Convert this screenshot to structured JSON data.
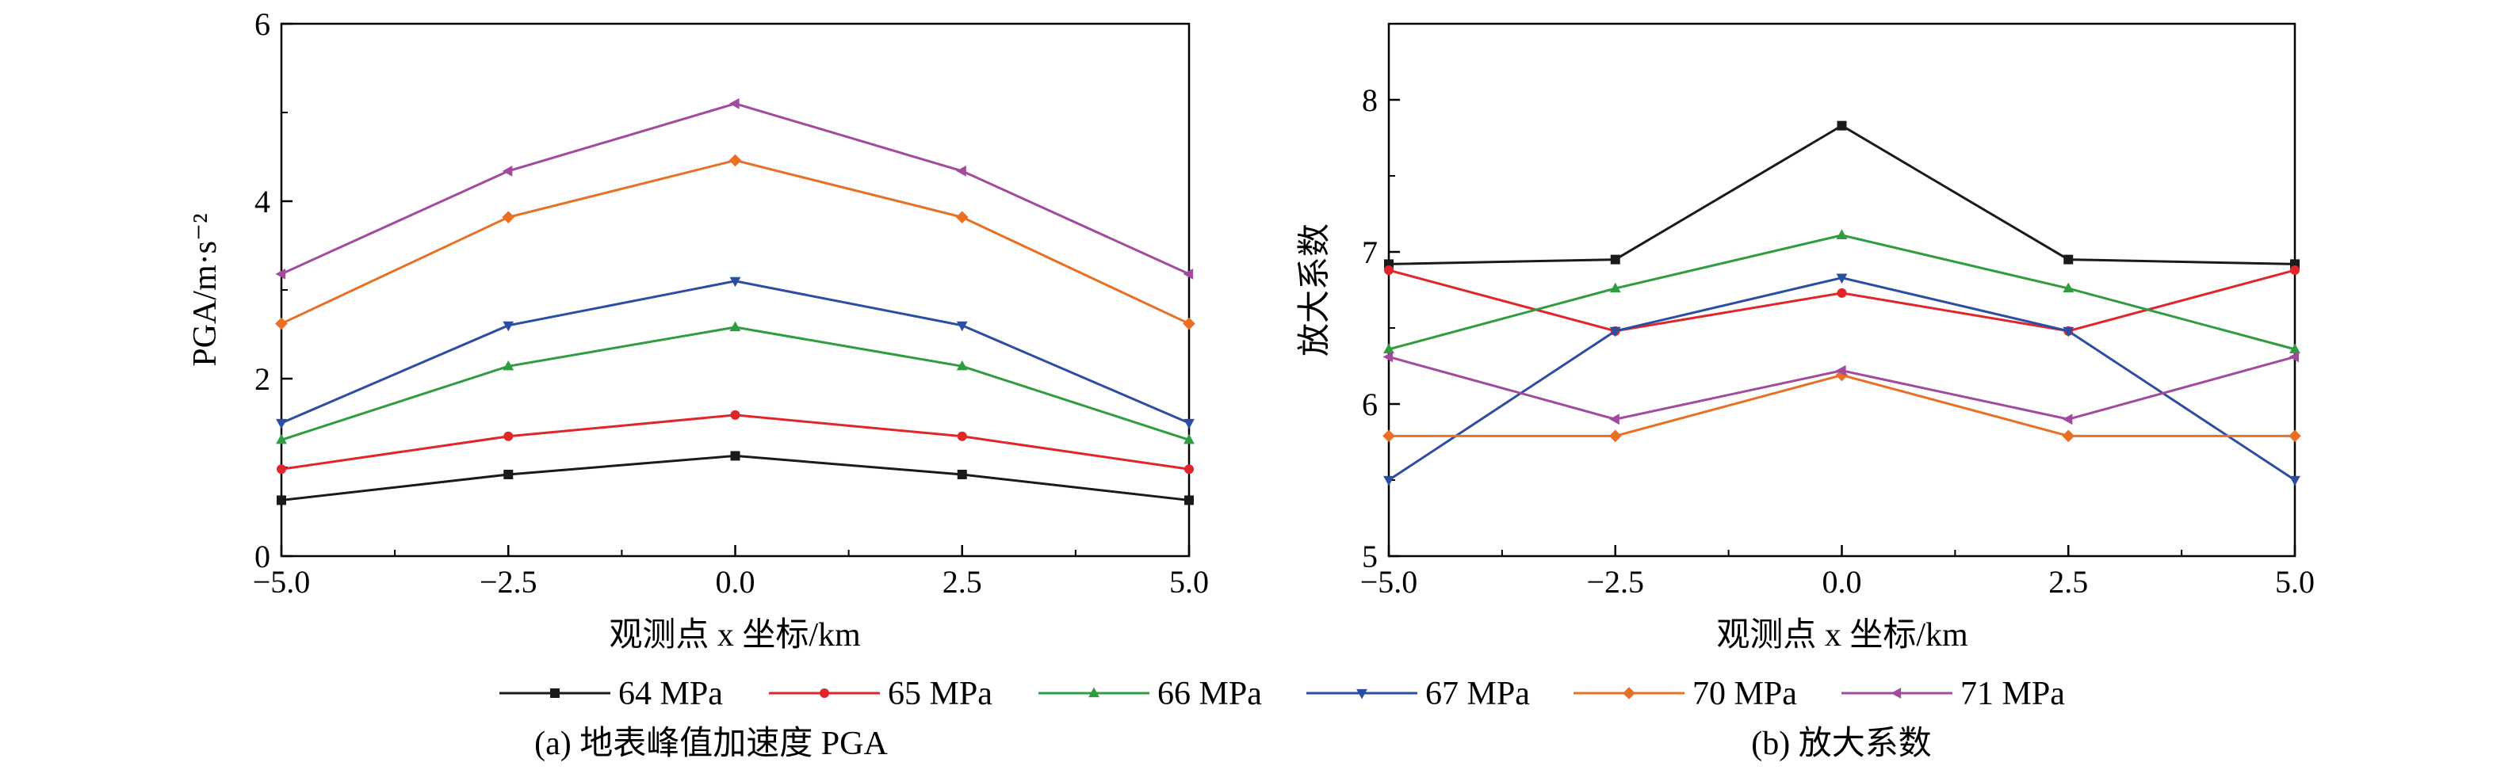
{
  "figure": {
    "legend": [
      {
        "label": "64 MPa",
        "color": "#1a1a1a",
        "marker": "square"
      },
      {
        "label": "65 MPa",
        "color": "#e0262b",
        "marker": "circle"
      },
      {
        "label": "66 MPa",
        "color": "#2e9c3f",
        "marker": "triangle-up"
      },
      {
        "label": "67 MPa",
        "color": "#2b4ea3",
        "marker": "triangle-down"
      },
      {
        "label": "70 MPa",
        "color": "#e87025",
        "marker": "diamond"
      },
      {
        "label": "71 MPa",
        "color": "#a24a9e",
        "marker": "triangle-left"
      }
    ]
  },
  "chart_data": [
    {
      "type": "line",
      "caption": "(a) 地表峰值加速度 PGA",
      "xlabel": "观测点 x 坐标/km",
      "ylabel": "PGA/m·s⁻²",
      "xlim": [
        -5.0,
        5.0
      ],
      "ylim": [
        0,
        6
      ],
      "x_ticks": [
        -5.0,
        -2.5,
        0.0,
        2.5,
        5.0
      ],
      "x_tick_labels": [
        "−5.0",
        "−2.5",
        "0.0",
        "2.5",
        "5.0"
      ],
      "y_ticks": [
        0,
        2,
        4,
        6
      ],
      "y_tick_labels": [
        "0",
        "2",
        "4",
        "6"
      ],
      "grid": false,
      "x": [
        -5.0,
        -2.5,
        0.0,
        2.5,
        5.0
      ],
      "series": [
        {
          "name": "64 MPa",
          "values": [
            0.63,
            0.92,
            1.13,
            0.92,
            0.63
          ]
        },
        {
          "name": "65 MPa",
          "values": [
            0.98,
            1.35,
            1.59,
            1.35,
            0.98
          ]
        },
        {
          "name": "66 MPa",
          "values": [
            1.31,
            2.14,
            2.58,
            2.14,
            1.31
          ]
        },
        {
          "name": "67 MPa",
          "values": [
            1.5,
            2.6,
            3.1,
            2.6,
            1.5
          ]
        },
        {
          "name": "70 MPa",
          "values": [
            2.62,
            3.82,
            4.46,
            3.82,
            2.62
          ]
        },
        {
          "name": "71 MPa",
          "values": [
            3.18,
            4.34,
            5.1,
            4.34,
            3.18
          ]
        }
      ]
    },
    {
      "type": "line",
      "caption": "(b) 放大系数",
      "xlabel": "观测点 x 坐标/km",
      "ylabel": "放大系数",
      "xlim": [
        -5.0,
        5.0
      ],
      "ylim": [
        5,
        8.5
      ],
      "x_ticks": [
        -5.0,
        -2.5,
        0.0,
        2.5,
        5.0
      ],
      "x_tick_labels": [
        "−5.0",
        "−2.5",
        "0.0",
        "2.5",
        "5.0"
      ],
      "y_ticks": [
        5,
        6,
        7,
        8
      ],
      "y_tick_labels": [
        "5",
        "6",
        "7",
        "8"
      ],
      "grid": false,
      "x": [
        -5.0,
        -2.5,
        0.0,
        2.5,
        5.0
      ],
      "series": [
        {
          "name": "64 MPa",
          "values": [
            6.92,
            6.95,
            7.83,
            6.95,
            6.92
          ]
        },
        {
          "name": "65 MPa",
          "values": [
            6.88,
            6.48,
            6.73,
            6.48,
            6.88
          ]
        },
        {
          "name": "66 MPa",
          "values": [
            6.36,
            6.76,
            7.11,
            6.76,
            6.36
          ]
        },
        {
          "name": "67 MPa",
          "values": [
            5.5,
            6.48,
            6.83,
            6.48,
            5.5
          ]
        },
        {
          "name": "70 MPa",
          "values": [
            5.79,
            5.79,
            6.19,
            5.79,
            5.79
          ]
        },
        {
          "name": "71 MPa",
          "values": [
            6.31,
            5.9,
            6.22,
            5.9,
            6.31
          ]
        }
      ]
    }
  ]
}
